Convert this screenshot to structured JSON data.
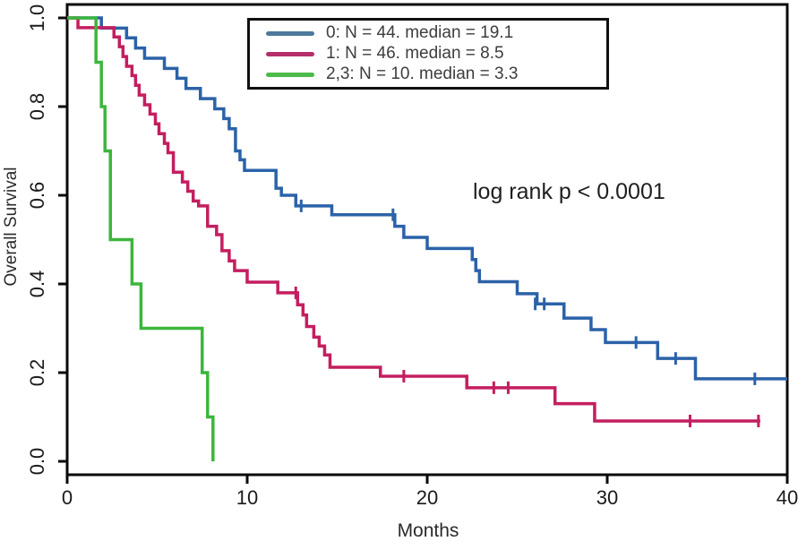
{
  "chart_data": {
    "type": "line",
    "subtype": "kaplan-meier-step",
    "title": "",
    "xlabel": "Months",
    "ylabel": "Overall Survival",
    "xlim": [
      0,
      40
    ],
    "ylim": [
      0.0,
      1.0
    ],
    "grid": false,
    "legend_position": "top-center",
    "annotation": "log rank p < 0.0001",
    "axis_color": "#0a0a0a",
    "xticks": [
      {
        "value": 0,
        "label": "0"
      },
      {
        "value": 10,
        "label": "10"
      },
      {
        "value": 20,
        "label": "20"
      },
      {
        "value": 30,
        "label": "30"
      },
      {
        "value": 40,
        "label": "40"
      }
    ],
    "yticks": [
      {
        "value": 1.0,
        "label": "1.0"
      },
      {
        "value": 0.8,
        "label": "0.8"
      },
      {
        "value": 0.6,
        "label": "0.6"
      },
      {
        "value": 0.4,
        "label": "0.4"
      },
      {
        "value": 0.2,
        "label": "0.2"
      },
      {
        "value": 0.0,
        "label": "0.0"
      }
    ],
    "series": [
      {
        "id": "group-0",
        "label": "0: N = 44. median = 19.1",
        "n": 44,
        "median": 19.1,
        "color": "#2b62a8",
        "legend_color": "#4d7a9c",
        "steps": [
          [
            0,
            1.0
          ],
          [
            1.9,
            0.977
          ],
          [
            3.3,
            0.955
          ],
          [
            3.8,
            0.932
          ],
          [
            4.3,
            0.909
          ],
          [
            5.4,
            0.886
          ],
          [
            6.1,
            0.864
          ],
          [
            6.6,
            0.841
          ],
          [
            7.4,
            0.818
          ],
          [
            8.2,
            0.795
          ],
          [
            8.7,
            0.773
          ],
          [
            9.0,
            0.75
          ],
          [
            9.35,
            0.7
          ],
          [
            9.6,
            0.68
          ],
          [
            9.85,
            0.656
          ],
          [
            11.6,
            0.616
          ],
          [
            11.9,
            0.6
          ],
          [
            12.7,
            0.576
          ],
          [
            14.7,
            0.556
          ],
          [
            18.2,
            0.53
          ],
          [
            18.7,
            0.505
          ],
          [
            20.0,
            0.48
          ],
          [
            22.5,
            0.455
          ],
          [
            22.7,
            0.43
          ],
          [
            22.9,
            0.405
          ],
          [
            25.0,
            0.378
          ],
          [
            26.1,
            0.355
          ],
          [
            27.6,
            0.323
          ],
          [
            29.1,
            0.297
          ],
          [
            29.9,
            0.268
          ],
          [
            32.8,
            0.232
          ],
          [
            34.9,
            0.186
          ],
          [
            40,
            0.186
          ]
        ],
        "censors": [
          [
            13.0,
            0.576
          ],
          [
            18.1,
            0.556
          ],
          [
            26.0,
            0.355
          ],
          [
            26.5,
            0.355
          ],
          [
            31.6,
            0.268
          ],
          [
            33.8,
            0.232
          ],
          [
            38.2,
            0.186
          ]
        ]
      },
      {
        "id": "group-1",
        "label": "1: N = 46. median = 8.5",
        "n": 46,
        "median": 8.5,
        "color": "#c41e60",
        "legend_color": "#b42e6a",
        "steps": [
          [
            0,
            1.0
          ],
          [
            0.6,
            0.978
          ],
          [
            2.6,
            0.957
          ],
          [
            2.9,
            0.935
          ],
          [
            3.1,
            0.913
          ],
          [
            3.3,
            0.891
          ],
          [
            3.6,
            0.87
          ],
          [
            3.8,
            0.848
          ],
          [
            4.0,
            0.826
          ],
          [
            4.3,
            0.804
          ],
          [
            4.6,
            0.783
          ],
          [
            4.9,
            0.761
          ],
          [
            5.1,
            0.739
          ],
          [
            5.4,
            0.717
          ],
          [
            5.6,
            0.696
          ],
          [
            5.9,
            0.652
          ],
          [
            6.4,
            0.63
          ],
          [
            6.7,
            0.609
          ],
          [
            7.0,
            0.587
          ],
          [
            7.3,
            0.576
          ],
          [
            7.8,
            0.53
          ],
          [
            8.3,
            0.511
          ],
          [
            8.6,
            0.475
          ],
          [
            9.0,
            0.452
          ],
          [
            9.3,
            0.43
          ],
          [
            10.0,
            0.404
          ],
          [
            11.7,
            0.38
          ],
          [
            12.8,
            0.353
          ],
          [
            13.1,
            0.33
          ],
          [
            13.3,
            0.304
          ],
          [
            13.7,
            0.28
          ],
          [
            14.0,
            0.26
          ],
          [
            14.3,
            0.24
          ],
          [
            14.6,
            0.212
          ],
          [
            17.4,
            0.192
          ],
          [
            22.2,
            0.166
          ],
          [
            27.1,
            0.13
          ],
          [
            29.3,
            0.091
          ],
          [
            38.5,
            0.091
          ]
        ],
        "censors": [
          [
            12.7,
            0.38
          ],
          [
            18.7,
            0.192
          ],
          [
            23.7,
            0.166
          ],
          [
            24.5,
            0.166
          ],
          [
            34.6,
            0.091
          ],
          [
            38.4,
            0.091
          ]
        ]
      },
      {
        "id": "group-2-3",
        "label": "2,3: N = 10. median = 3.3",
        "n": 10,
        "median": 3.3,
        "color": "#3db53d",
        "legend_color": "#4cbb4c",
        "steps": [
          [
            0,
            1.0
          ],
          [
            1.6,
            0.9
          ],
          [
            1.9,
            0.8
          ],
          [
            2.1,
            0.7
          ],
          [
            2.4,
            0.5
          ],
          [
            3.6,
            0.4
          ],
          [
            4.1,
            0.3
          ],
          [
            7.5,
            0.2
          ],
          [
            7.8,
            0.1
          ],
          [
            8.1,
            0.0
          ]
        ],
        "censors": []
      }
    ]
  }
}
